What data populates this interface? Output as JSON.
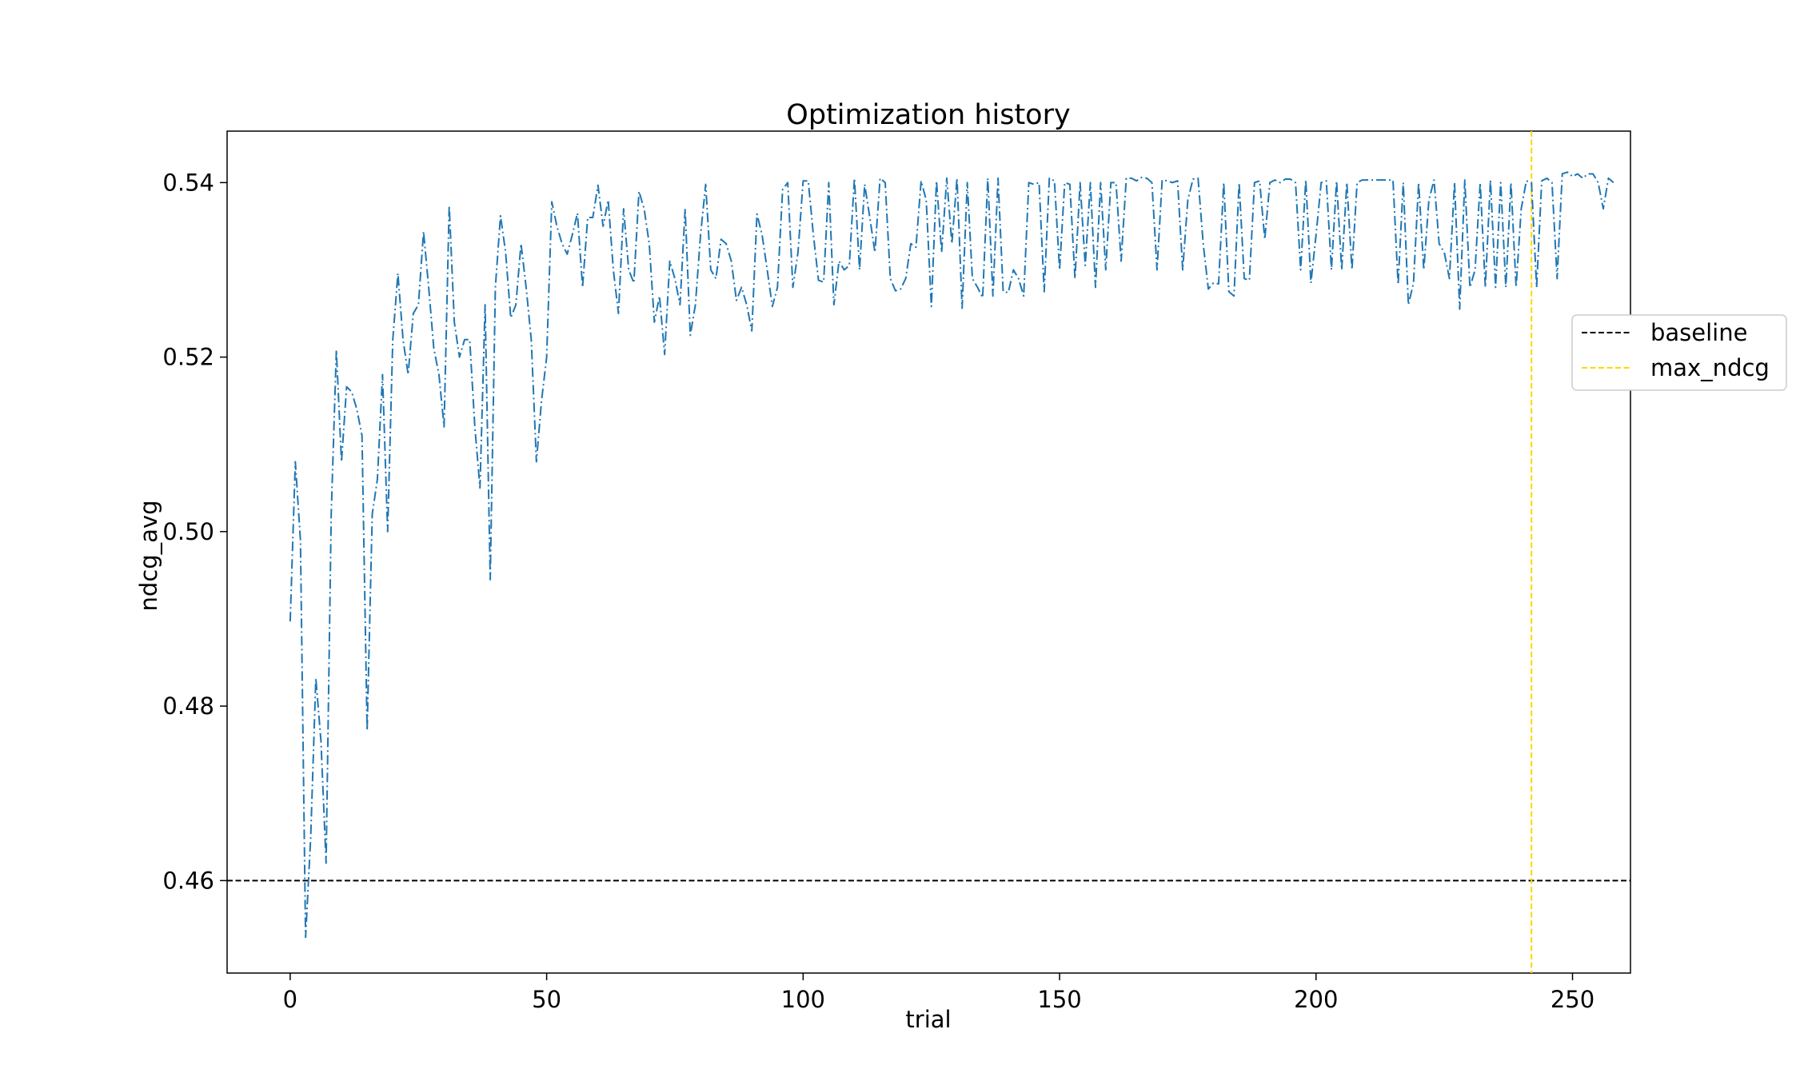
{
  "chart_data": {
    "type": "line",
    "title": "Optimization history",
    "xlabel": "trial",
    "ylabel": "ndcg_avg",
    "xlim": [
      -12.3,
      261.3
    ],
    "ylim": [
      0.4494,
      0.5459
    ],
    "x_ticks": [
      0,
      50,
      100,
      150,
      200,
      250
    ],
    "y_ticks": [
      0.46,
      0.48,
      0.5,
      0.52,
      0.54
    ],
    "x_tick_labels": [
      "0",
      "50",
      "100",
      "150",
      "200",
      "250"
    ],
    "y_tick_labels": [
      "0.46",
      "0.48",
      "0.50",
      "0.52",
      "0.54"
    ],
    "grid": false,
    "legend_position": "right, outside plot",
    "legend": [
      {
        "label": "baseline",
        "color": "#000000",
        "style": "dashed"
      },
      {
        "label": "max_ndcg",
        "color": "#ffd700",
        "style": "dashed"
      }
    ],
    "series": [
      {
        "color": "#1f77b4",
        "style": "dashdot",
        "x_start": 0,
        "values": [
          0.4897,
          0.508,
          0.499,
          0.4535,
          0.465,
          0.4832,
          0.476,
          0.462,
          0.502,
          0.5208,
          0.508,
          0.5166,
          0.516,
          0.514,
          0.511,
          0.4772,
          0.502,
          0.506,
          0.518,
          0.5,
          0.522,
          0.5296,
          0.522,
          0.518,
          0.525,
          0.526,
          0.5344,
          0.528,
          0.521,
          0.518,
          0.512,
          0.5374,
          0.524,
          0.52,
          0.522,
          0.522,
          0.512,
          0.505,
          0.526,
          0.4945,
          0.528,
          0.5362,
          0.532,
          0.5245,
          0.526,
          0.533,
          0.528,
          0.522,
          0.508,
          0.515,
          0.52,
          0.5378,
          0.535,
          0.533,
          0.5318,
          0.534,
          0.5365,
          0.528,
          0.536,
          0.536,
          0.5397,
          0.535,
          0.538,
          0.53,
          0.525,
          0.537,
          0.53,
          0.5285,
          0.539,
          0.537,
          0.533,
          0.524,
          0.527,
          0.5203,
          0.531,
          0.529,
          0.526,
          0.537,
          0.5225,
          0.526,
          0.534,
          0.5398,
          0.53,
          0.529,
          0.5335,
          0.533,
          0.531,
          0.5265,
          0.528,
          0.526,
          0.523,
          0.5364,
          0.534,
          0.53,
          0.5258,
          0.528,
          0.5392,
          0.54,
          0.528,
          0.532,
          0.5402,
          0.5402,
          0.534,
          0.5288,
          0.5286,
          0.54,
          0.526,
          0.531,
          0.53,
          0.5305,
          0.5405,
          0.53,
          0.5398,
          0.536,
          0.532,
          0.5405,
          0.54,
          0.529,
          0.5276,
          0.5278,
          0.529,
          0.533,
          0.5326,
          0.5402,
          0.538,
          0.5258,
          0.5402,
          0.532,
          0.5405,
          0.533,
          0.5405,
          0.5256,
          0.54,
          0.529,
          0.528,
          0.5268,
          0.5405,
          0.527,
          0.5405,
          0.5275,
          0.5274,
          0.53,
          0.529,
          0.527,
          0.54,
          0.5398,
          0.54,
          0.5275,
          0.5405,
          0.5402,
          0.53,
          0.54,
          0.5398,
          0.529,
          0.54,
          0.5305,
          0.54,
          0.528,
          0.54,
          0.53,
          0.54,
          0.54,
          0.531,
          0.5405,
          0.5405,
          0.5402,
          0.5406,
          0.5405,
          0.54,
          0.53,
          0.5403,
          0.5402,
          0.54,
          0.5402,
          0.53,
          0.538,
          0.5404,
          0.5405,
          0.533,
          0.5278,
          0.5285,
          0.5284,
          0.54,
          0.5275,
          0.527,
          0.54,
          0.529,
          0.5288,
          0.54,
          0.5402,
          0.5335,
          0.54,
          0.5403,
          0.54,
          0.5404,
          0.5404,
          0.54,
          0.53,
          0.5403,
          0.5285,
          0.534,
          0.54,
          0.5402,
          0.53,
          0.5402,
          0.53,
          0.54,
          0.53,
          0.54,
          0.5403,
          0.5403,
          0.5403,
          0.5403,
          0.5403,
          0.5403,
          0.5403,
          0.5283,
          0.54,
          0.526,
          0.5285,
          0.54,
          0.53,
          0.538,
          0.5403,
          0.533,
          0.532,
          0.529,
          0.54,
          0.5255,
          0.5403,
          0.528,
          0.53,
          0.54,
          0.528,
          0.5403,
          0.528,
          0.54,
          0.528,
          0.54,
          0.528,
          0.537,
          0.5402,
          0.54,
          0.528,
          0.5402,
          0.5405,
          0.54,
          0.529,
          0.541,
          0.5412,
          0.5407,
          0.541,
          0.5405,
          0.541,
          0.541,
          0.54,
          0.537,
          0.5405,
          0.54
        ]
      }
    ],
    "reference_lines": [
      {
        "name": "baseline",
        "orientation": "horizontal",
        "value": 0.46,
        "color": "#000000"
      },
      {
        "name": "max_ndcg",
        "orientation": "vertical",
        "value": 242,
        "color": "#ffd700"
      }
    ]
  }
}
